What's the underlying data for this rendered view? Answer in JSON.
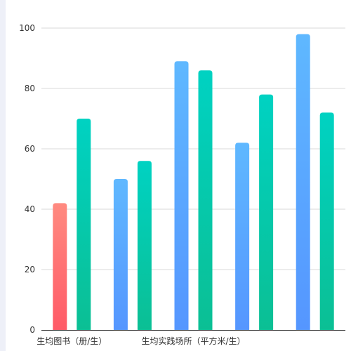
{
  "chart_data": {
    "type": "bar",
    "title": "",
    "xlabel": "",
    "ylabel": "",
    "ylim": [
      0,
      100
    ],
    "yticks": [
      0,
      20,
      40,
      60,
      80,
      100
    ],
    "grid": true,
    "legend": "none",
    "category_labels": [
      {
        "text": "生均图书（册/生）",
        "group_index": 0
      },
      {
        "text": "生均实践场所（平方米/生）",
        "group_index": 2
      }
    ],
    "groups": [
      {
        "bars": [
          {
            "value": 42,
            "color_top": "#ff8a80",
            "color_bottom": "#ff5a67"
          },
          {
            "value": 70,
            "color_top": "#00d2c2",
            "color_bottom": "#0bbf94"
          }
        ]
      },
      {
        "bars": [
          {
            "value": 50,
            "color_top": "#5fb8ff",
            "color_bottom": "#5596ff"
          },
          {
            "value": 56,
            "color_top": "#00d2c2",
            "color_bottom": "#0bbf94"
          }
        ]
      },
      {
        "bars": [
          {
            "value": 89,
            "color_top": "#5fb8ff",
            "color_bottom": "#5596ff"
          },
          {
            "value": 86,
            "color_top": "#00d2c2",
            "color_bottom": "#0bbf94"
          }
        ]
      },
      {
        "bars": [
          {
            "value": 62,
            "color_top": "#5fb8ff",
            "color_bottom": "#5596ff"
          },
          {
            "value": 78,
            "color_top": "#00d2c2",
            "color_bottom": "#0bbf94"
          }
        ]
      },
      {
        "bars": [
          {
            "value": 98,
            "color_top": "#5fb8ff",
            "color_bottom": "#5596ff"
          },
          {
            "value": 72,
            "color_top": "#00d2c2",
            "color_bottom": "#0bbf94"
          }
        ]
      }
    ]
  }
}
